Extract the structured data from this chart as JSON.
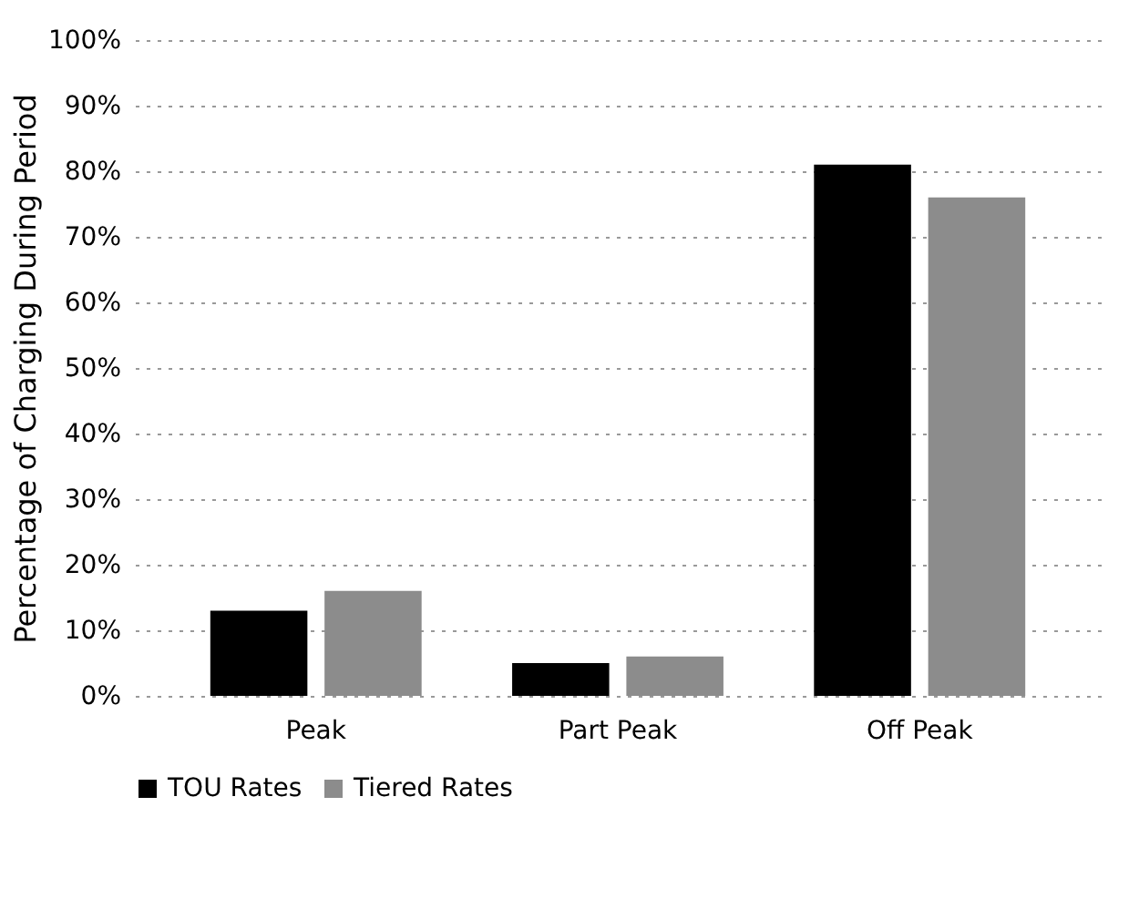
{
  "chart_data": {
    "type": "bar",
    "ylabel": "Percentage of Charging During Period",
    "categories": [
      "Peak",
      "Part Peak",
      "Off Peak"
    ],
    "series": [
      {
        "name": "TOU Rates",
        "color": "#000000",
        "values": [
          13,
          5,
          81
        ]
      },
      {
        "name": "Tiered Rates",
        "color": "#8c8c8c",
        "values": [
          16,
          6,
          76
        ]
      }
    ],
    "ylim": [
      0,
      100
    ],
    "yticks": [
      {
        "value": 0,
        "label": "0%"
      },
      {
        "value": 10,
        "label": "10%"
      },
      {
        "value": 20,
        "label": "20%"
      },
      {
        "value": 30,
        "label": "30%"
      },
      {
        "value": 40,
        "label": "40%"
      },
      {
        "value": 50,
        "label": "50%"
      },
      {
        "value": 60,
        "label": "60%"
      },
      {
        "value": 70,
        "label": "70%"
      },
      {
        "value": 80,
        "label": "80%"
      },
      {
        "value": 90,
        "label": "90%"
      },
      {
        "value": 100,
        "label": "100%"
      }
    ],
    "grid": "y",
    "legend": "bottom"
  }
}
